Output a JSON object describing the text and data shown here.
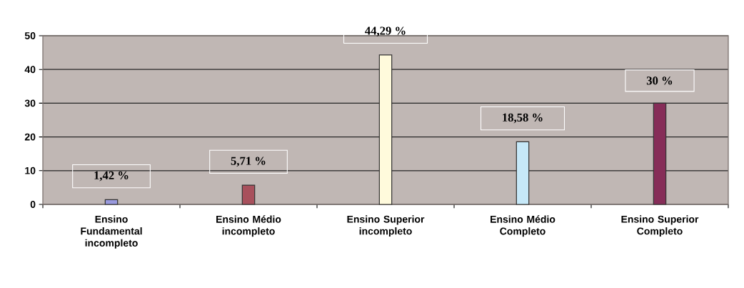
{
  "chart_data": {
    "type": "bar",
    "categories": [
      "Ensino Fundamental incompleto",
      "Ensino Médio incompleto",
      "Ensino Superior incompleto",
      "Ensino Médio Completo",
      "Ensino Superior Completo"
    ],
    "values": [
      1.42,
      5.71,
      44.29,
      18.58,
      30
    ],
    "colors": [
      "#9999dd",
      "#a8505c",
      "#fffadc",
      "#c6e8f8",
      "#862d58"
    ],
    "value_labels": [
      "1,42 %",
      "5,71 %",
      "44,29 %",
      "18,58 %",
      "30 %"
    ],
    "ylim": [
      0,
      50
    ],
    "yticks": [
      0,
      10,
      20,
      30,
      40,
      50
    ],
    "grid": "y"
  }
}
